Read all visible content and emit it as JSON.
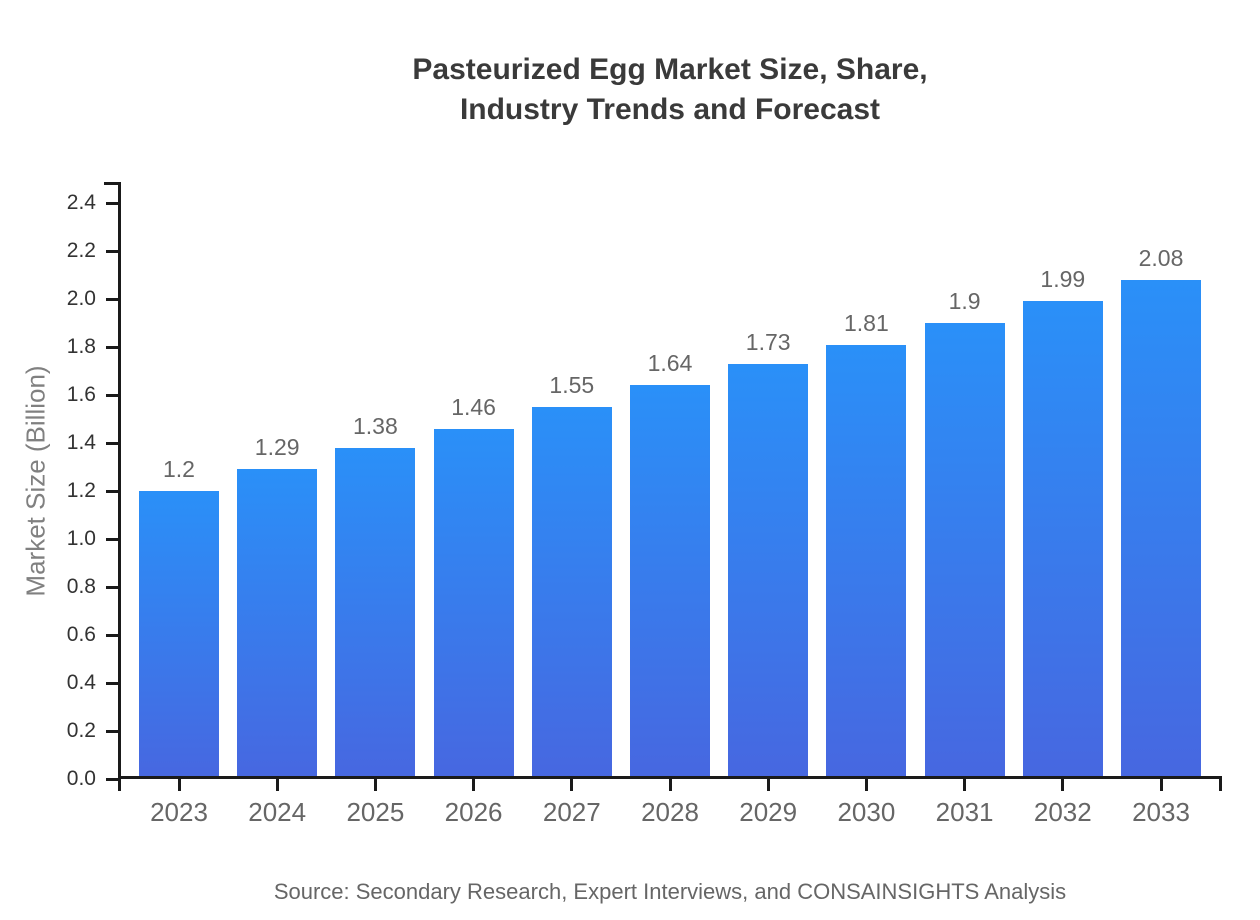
{
  "chart_data": {
    "type": "bar",
    "title": "Pasteurized Egg Market Size, Share, Industry Trends and Forecast",
    "title_lines": [
      "Pasteurized Egg Market Size, Share,",
      "Industry Trends and Forecast"
    ],
    "categories": [
      "2023",
      "2024",
      "2025",
      "2026",
      "2027",
      "2028",
      "2029",
      "2030",
      "2031",
      "2032",
      "2033"
    ],
    "values": [
      1.2,
      1.29,
      1.38,
      1.46,
      1.55,
      1.64,
      1.73,
      1.81,
      1.9,
      1.99,
      2.08
    ],
    "value_labels": [
      "1.2",
      "1.29",
      "1.38",
      "1.46",
      "1.55",
      "1.64",
      "1.73",
      "1.81",
      "1.9",
      "1.99",
      "2.08"
    ],
    "xlabel": "",
    "ylabel": "Market Size (Billion)",
    "ylim": [
      0,
      2.4
    ],
    "ytick_step": 0.2,
    "ytick_labels": [
      "0.0",
      "0.2",
      "0.4",
      "0.6",
      "0.8",
      "1.0",
      "1.2",
      "1.4",
      "1.6",
      "1.8",
      "2.0",
      "2.2",
      "2.4"
    ],
    "grid": false,
    "legend_position": "none",
    "source": "Source: Secondary Research, Expert Interviews, and CONSAINSIGHTS Analysis"
  },
  "colors": {
    "background": "#ffffff",
    "title": "#3a3a3a",
    "bar_gradient_top": "#2a90f8",
    "bar_gradient_bottom": "#4767e0",
    "axis": "#1a1a1a",
    "ytick_label": "#333333",
    "xtick_label": "#666666",
    "value_label": "#666666",
    "y_axis_title": "#808080",
    "source": "#666666"
  }
}
